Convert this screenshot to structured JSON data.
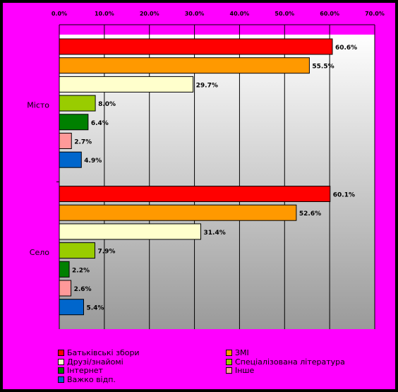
{
  "chart_data": {
    "type": "bar",
    "orientation": "horizontal",
    "title": "",
    "xlabel": "",
    "ylabel": "",
    "xlim": [
      0,
      70
    ],
    "x_ticks": [
      "0.0%",
      "10.0%",
      "20.0%",
      "30.0%",
      "40.0%",
      "50.0%",
      "60.0%",
      "70.0%"
    ],
    "grid": true,
    "legend_position": "bottom",
    "categories": [
      "Місто",
      "Село"
    ],
    "series": [
      {
        "name": "Батьківські збори",
        "color": "#ff0000",
        "values": [
          60.6,
          60.1
        ],
        "labels": [
          "60.6%",
          "60.1%"
        ]
      },
      {
        "name": "ЗМІ",
        "color": "#ff9900",
        "values": [
          55.5,
          52.6
        ],
        "labels": [
          "55.5%",
          "52.6%"
        ]
      },
      {
        "name": "Друзі/знайомі",
        "color": "#ffffcc",
        "values": [
          29.7,
          31.4
        ],
        "labels": [
          "29.7%",
          "31.4%"
        ]
      },
      {
        "name": "Спеціалізована література",
        "color": "#99cc00",
        "values": [
          8.0,
          7.9
        ],
        "labels": [
          "8.0%",
          "7.9%"
        ]
      },
      {
        "name": "Інтернет",
        "color": "#008000",
        "values": [
          6.4,
          2.2
        ],
        "labels": [
          "6.4%",
          "2.2%"
        ]
      },
      {
        "name": "Інше",
        "color": "#ff9999",
        "values": [
          2.7,
          2.6
        ],
        "labels": [
          "2.7%",
          "2.6%"
        ]
      },
      {
        "name": "Важко відп.",
        "color": "#0066cc",
        "values": [
          4.9,
          5.4
        ],
        "labels": [
          "4.9%",
          "5.4%"
        ]
      }
    ]
  }
}
